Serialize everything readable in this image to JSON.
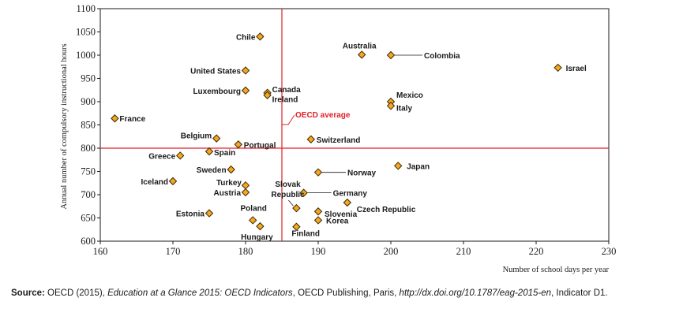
{
  "chart_data": {
    "type": "scatter",
    "xlabel": "Number of school days per year",
    "ylabel": "Annual number of compulsory instructional hours",
    "xlim": [
      160,
      230
    ],
    "ylim": [
      600,
      1100
    ],
    "xticks": [
      160,
      170,
      180,
      190,
      200,
      210,
      220,
      230
    ],
    "yticks": [
      600,
      650,
      700,
      750,
      800,
      850,
      900,
      950,
      1000,
      1050,
      1100
    ],
    "grid": false,
    "marker_color": "#f5a623",
    "reference_line_color": "#e0202a",
    "reference_lines": {
      "label": "OECD average",
      "x": 185,
      "y": 800
    },
    "points": [
      {
        "name": "Chile",
        "x": 182,
        "y": 1040
      },
      {
        "name": "Australia",
        "x": 196,
        "y": 1001
      },
      {
        "name": "Colombia",
        "x": 200,
        "y": 1000
      },
      {
        "name": "Israel",
        "x": 223,
        "y": 973
      },
      {
        "name": "United States",
        "x": 180,
        "y": 967
      },
      {
        "name": "Luxembourg",
        "x": 180,
        "y": 924
      },
      {
        "name": "Canada",
        "x": 183,
        "y": 919
      },
      {
        "name": "Ireland",
        "x": 183,
        "y": 914
      },
      {
        "name": "Mexico",
        "x": 200,
        "y": 900
      },
      {
        "name": "Italy",
        "x": 200,
        "y": 891
      },
      {
        "name": "France",
        "x": 162,
        "y": 864
      },
      {
        "name": "Belgium",
        "x": 176,
        "y": 821
      },
      {
        "name": "Switzerland",
        "x": 189,
        "y": 819
      },
      {
        "name": "Portugal",
        "x": 179,
        "y": 808
      },
      {
        "name": "Spain",
        "x": 175,
        "y": 793
      },
      {
        "name": "Greece",
        "x": 171,
        "y": 784
      },
      {
        "name": "Sweden",
        "x": 178,
        "y": 754
      },
      {
        "name": "Japan",
        "x": 201,
        "y": 762
      },
      {
        "name": "Norway",
        "x": 190,
        "y": 748
      },
      {
        "name": "Iceland",
        "x": 170,
        "y": 729
      },
      {
        "name": "Turkey",
        "x": 180,
        "y": 720
      },
      {
        "name": "Austria",
        "x": 180,
        "y": 705
      },
      {
        "name": "Germany",
        "x": 188,
        "y": 704
      },
      {
        "name": "Slovak Republic",
        "x": 187,
        "y": 671
      },
      {
        "name": "Czech Republic",
        "x": 194,
        "y": 683
      },
      {
        "name": "Estonia",
        "x": 175,
        "y": 660
      },
      {
        "name": "Slovenia",
        "x": 190,
        "y": 664
      },
      {
        "name": "Poland",
        "x": 181,
        "y": 645
      },
      {
        "name": "Korea",
        "x": 190,
        "y": 645
      },
      {
        "name": "Hungary",
        "x": 182,
        "y": 632
      },
      {
        "name": "Finland",
        "x": 187,
        "y": 631
      }
    ]
  },
  "source": {
    "label": "Source:",
    "text_1": " OECD (2015), ",
    "publication": "Education at a Glance 2015: OECD Indicators",
    "text_2": ", OECD Publishing, Paris, ",
    "url": "http://dx.doi.org/10.1787/eag-2015-en",
    "text_3": ", Indicator D1."
  }
}
